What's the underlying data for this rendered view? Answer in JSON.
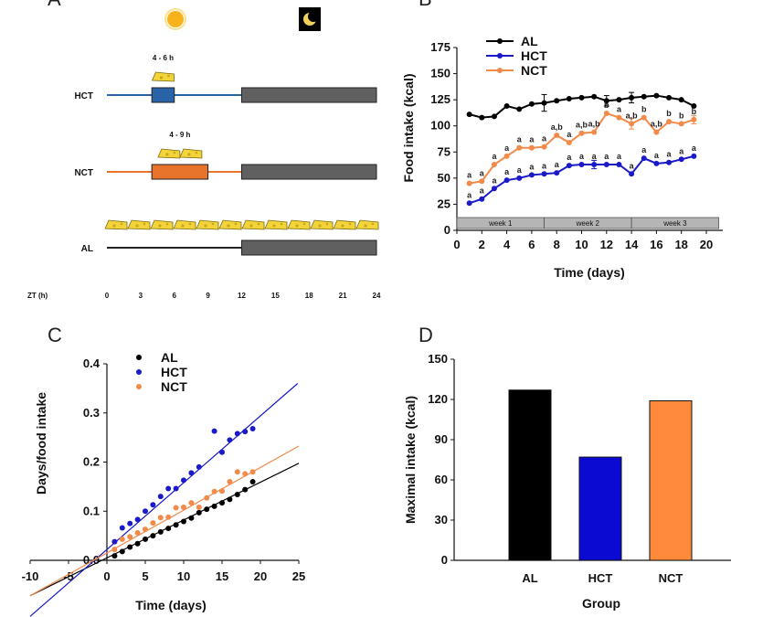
{
  "chart_data": [
    {
      "panel": "A",
      "type": "timeline",
      "label": "A",
      "groups": [
        {
          "name": "HCT",
          "color": "#2a63a8",
          "food_start_zt": 4,
          "food_end_zt": 6,
          "window_label": "4 - 6 h",
          "cheese_icons": 1
        },
        {
          "name": "NCT",
          "color": "#e8732a",
          "food_start_zt": 4,
          "food_end_zt": 9,
          "window_label": "4 - 9 h",
          "cheese_icons": 2
        },
        {
          "name": "AL",
          "color": "#222222",
          "food_start_zt": 0,
          "food_end_zt": 24,
          "window_label": "",
          "cheese_icons": 12
        }
      ],
      "dark_phase_zt": [
        12,
        24
      ],
      "xlabel": "ZT (h)",
      "xticks": [
        0,
        3,
        6,
        9,
        12,
        15,
        18,
        21,
        24
      ]
    },
    {
      "panel": "B",
      "type": "line",
      "label": "B",
      "xlabel": "Time (days)",
      "ylabel": "Food intake (kcal)",
      "xlim": [
        0,
        20
      ],
      "ylim": [
        0,
        175
      ],
      "xticks": [
        0,
        2,
        4,
        6,
        8,
        10,
        12,
        14,
        16,
        18,
        20
      ],
      "yticks": [
        0,
        25,
        50,
        75,
        100,
        125,
        150,
        175
      ],
      "x": [
        1,
        2,
        3,
        4,
        5,
        6,
        7,
        8,
        9,
        10,
        11,
        12,
        13,
        14,
        15,
        16,
        17,
        18,
        19
      ],
      "series": [
        {
          "name": "AL",
          "color": "#000000",
          "values": [
            111,
            108,
            109,
            119,
            116,
            121,
            122,
            124,
            126,
            127,
            128,
            124,
            125,
            127,
            128,
            129,
            127,
            125,
            119
          ]
        },
        {
          "name": "HCT",
          "color": "#1a1ac8",
          "values": [
            26,
            30,
            40,
            48,
            50,
            53,
            54,
            55,
            62,
            63,
            63,
            63,
            63,
            54,
            69,
            64,
            65,
            68,
            71
          ]
        },
        {
          "name": "NCT",
          "color": "#f28a4a",
          "values": [
            45,
            47,
            63,
            71,
            79,
            79,
            80,
            91,
            84,
            93,
            94,
            112,
            108,
            102,
            108,
            94,
            104,
            102,
            106
          ]
        }
      ],
      "errorbars": [
        {
          "series": "AL",
          "x": 7,
          "err": 8
        },
        {
          "series": "AL",
          "x": 12,
          "err": 5
        },
        {
          "series": "AL",
          "x": 14,
          "err": 5
        },
        {
          "series": "HCT",
          "x": 11,
          "err": 4
        },
        {
          "series": "NCT",
          "x": 14,
          "err": 5
        },
        {
          "series": "NCT",
          "x": 19,
          "err": 4
        }
      ],
      "week_bar": [
        {
          "label": "week 1",
          "start": 0,
          "end": 7
        },
        {
          "label": "week 2",
          "start": 7,
          "end": 14
        },
        {
          "label": "week 3",
          "start": 14,
          "end": 21
        }
      ],
      "annotations_hct": [
        "a",
        "a",
        "a",
        "a",
        "a",
        "a",
        "a",
        "a",
        "a",
        "a",
        "a",
        "a",
        "a",
        "a",
        "a",
        "a",
        "a",
        "a",
        "a"
      ],
      "annotations_nct": [
        "a",
        "a",
        "a",
        "a",
        "a",
        "a",
        "a",
        "a,b",
        "a",
        "a,b",
        "a,b",
        "b",
        "a",
        "a,b",
        "b",
        "a,b",
        "b",
        "b",
        "b"
      ]
    },
    {
      "panel": "C",
      "type": "scatter",
      "label": "C",
      "xlabel": "Time (days)",
      "ylabel": "Days/food intake",
      "xlim": [
        -10,
        25
      ],
      "ylim": [
        0,
        0.4
      ],
      "xticks": [
        -10,
        -5,
        0,
        5,
        10,
        15,
        20,
        25
      ],
      "yticks": [
        0.0,
        0.1,
        0.2,
        0.3,
        0.4
      ],
      "ytick_labels": [
        "0.0",
        "0.1",
        "0.2",
        "0.3",
        "0.4"
      ],
      "series": [
        {
          "name": "AL",
          "color": "#000000",
          "x": [
            1,
            2,
            3,
            4,
            5,
            6,
            7,
            8,
            9,
            10,
            11,
            12,
            13,
            14,
            15,
            16,
            17,
            18,
            19
          ],
          "y": [
            0.009,
            0.018,
            0.027,
            0.034,
            0.043,
            0.05,
            0.058,
            0.065,
            0.072,
            0.079,
            0.086,
            0.097,
            0.104,
            0.11,
            0.117,
            0.124,
            0.134,
            0.144,
            0.16
          ],
          "fit": {
            "slope": 0.0077,
            "intercept": 0.005
          }
        },
        {
          "name": "HCT",
          "color": "#1a1ac8",
          "x": [
            1,
            2,
            3,
            4,
            5,
            6,
            7,
            8,
            9,
            10,
            11,
            12,
            14,
            15,
            16,
            17,
            18,
            19
          ],
          "y": [
            0.038,
            0.066,
            0.075,
            0.083,
            0.1,
            0.113,
            0.13,
            0.146,
            0.146,
            0.163,
            0.178,
            0.19,
            0.263,
            0.22,
            0.245,
            0.258,
            0.262,
            0.268
          ],
          "fit": {
            "slope": 0.0136,
            "intercept": 0.022
          }
        },
        {
          "name": "NCT",
          "color": "#f28a4a",
          "x": [
            1,
            2,
            3,
            4,
            5,
            6,
            7,
            8,
            9,
            10,
            11,
            12,
            13,
            14,
            15,
            16,
            17,
            18,
            19
          ],
          "y": [
            0.022,
            0.043,
            0.048,
            0.056,
            0.063,
            0.076,
            0.087,
            0.088,
            0.107,
            0.108,
            0.117,
            0.108,
            0.127,
            0.14,
            0.141,
            0.16,
            0.18,
            0.176,
            0.18
          ],
          "fit": {
            "slope": 0.0087,
            "intercept": 0.015
          }
        }
      ]
    },
    {
      "panel": "D",
      "type": "bar",
      "label": "D",
      "xlabel": "Group",
      "ylabel": "Maximal intake (kcal)",
      "ylim": [
        0,
        150
      ],
      "yticks": [
        0,
        30,
        60,
        90,
        120,
        150
      ],
      "categories": [
        "AL",
        "HCT",
        "NCT"
      ],
      "values": [
        127,
        77,
        119
      ],
      "colors": [
        "#000000",
        "#0a0ad2",
        "#ff8a3c"
      ]
    }
  ]
}
